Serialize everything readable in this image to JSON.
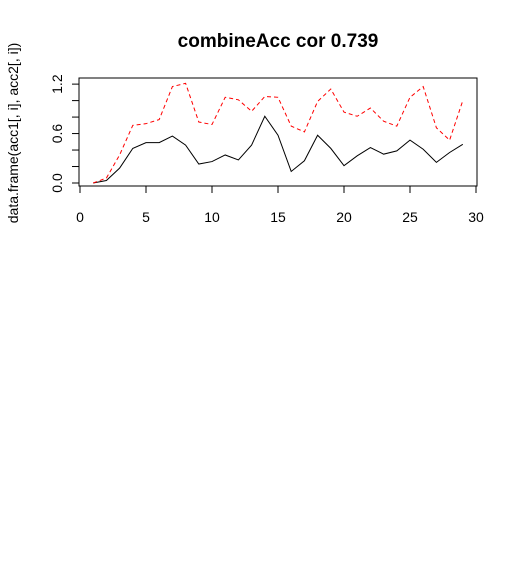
{
  "chart_data": {
    "type": "line",
    "title": "combineAcc cor 0.739",
    "xlabel": "",
    "ylabel": "data.frame(acc1[, i], acc2[, i])",
    "xlim": [
      0,
      30
    ],
    "ylim": [
      0,
      1.25
    ],
    "xticks": [
      "0",
      "5",
      "10",
      "15",
      "20",
      "25",
      "30"
    ],
    "yticks": [
      "0.0",
      "0.6",
      "1.2"
    ],
    "ytick_values": [
      0.0,
      0.6,
      1.2
    ],
    "yminor_ticks": [
      0.2,
      0.4,
      0.8,
      1.0
    ],
    "grid": false,
    "legend": null,
    "series": [
      {
        "color": "#000000",
        "linestyle": "solid",
        "x": [
          1,
          2,
          3,
          4,
          5,
          6,
          7,
          8,
          9,
          10,
          11,
          12,
          13,
          14,
          15,
          16,
          17,
          18,
          19,
          20,
          21,
          22,
          23,
          24,
          25,
          26,
          27,
          28,
          29
        ],
        "y": [
          0.0,
          0.03,
          0.18,
          0.42,
          0.49,
          0.49,
          0.57,
          0.46,
          0.23,
          0.26,
          0.34,
          0.28,
          0.46,
          0.81,
          0.58,
          0.14,
          0.27,
          0.58,
          0.42,
          0.21,
          0.33,
          0.43,
          0.35,
          0.39,
          0.52,
          0.41,
          0.25,
          0.37,
          0.47
        ]
      },
      {
        "color": "#ff0000",
        "linestyle": "dashed",
        "x": [
          1,
          2,
          3,
          4,
          5,
          6,
          7,
          8,
          9,
          10,
          11,
          12,
          13,
          14,
          15,
          16,
          17,
          18,
          19,
          20,
          21,
          22,
          23,
          24,
          25,
          26,
          27,
          28,
          29
        ],
        "y": [
          0.0,
          0.06,
          0.34,
          0.7,
          0.72,
          0.77,
          1.17,
          1.21,
          0.74,
          0.71,
          1.04,
          1.01,
          0.87,
          1.05,
          1.04,
          0.69,
          0.62,
          0.99,
          1.14,
          0.86,
          0.81,
          0.91,
          0.75,
          0.69,
          1.04,
          1.17,
          0.67,
          0.52,
          1.0
        ]
      }
    ]
  }
}
